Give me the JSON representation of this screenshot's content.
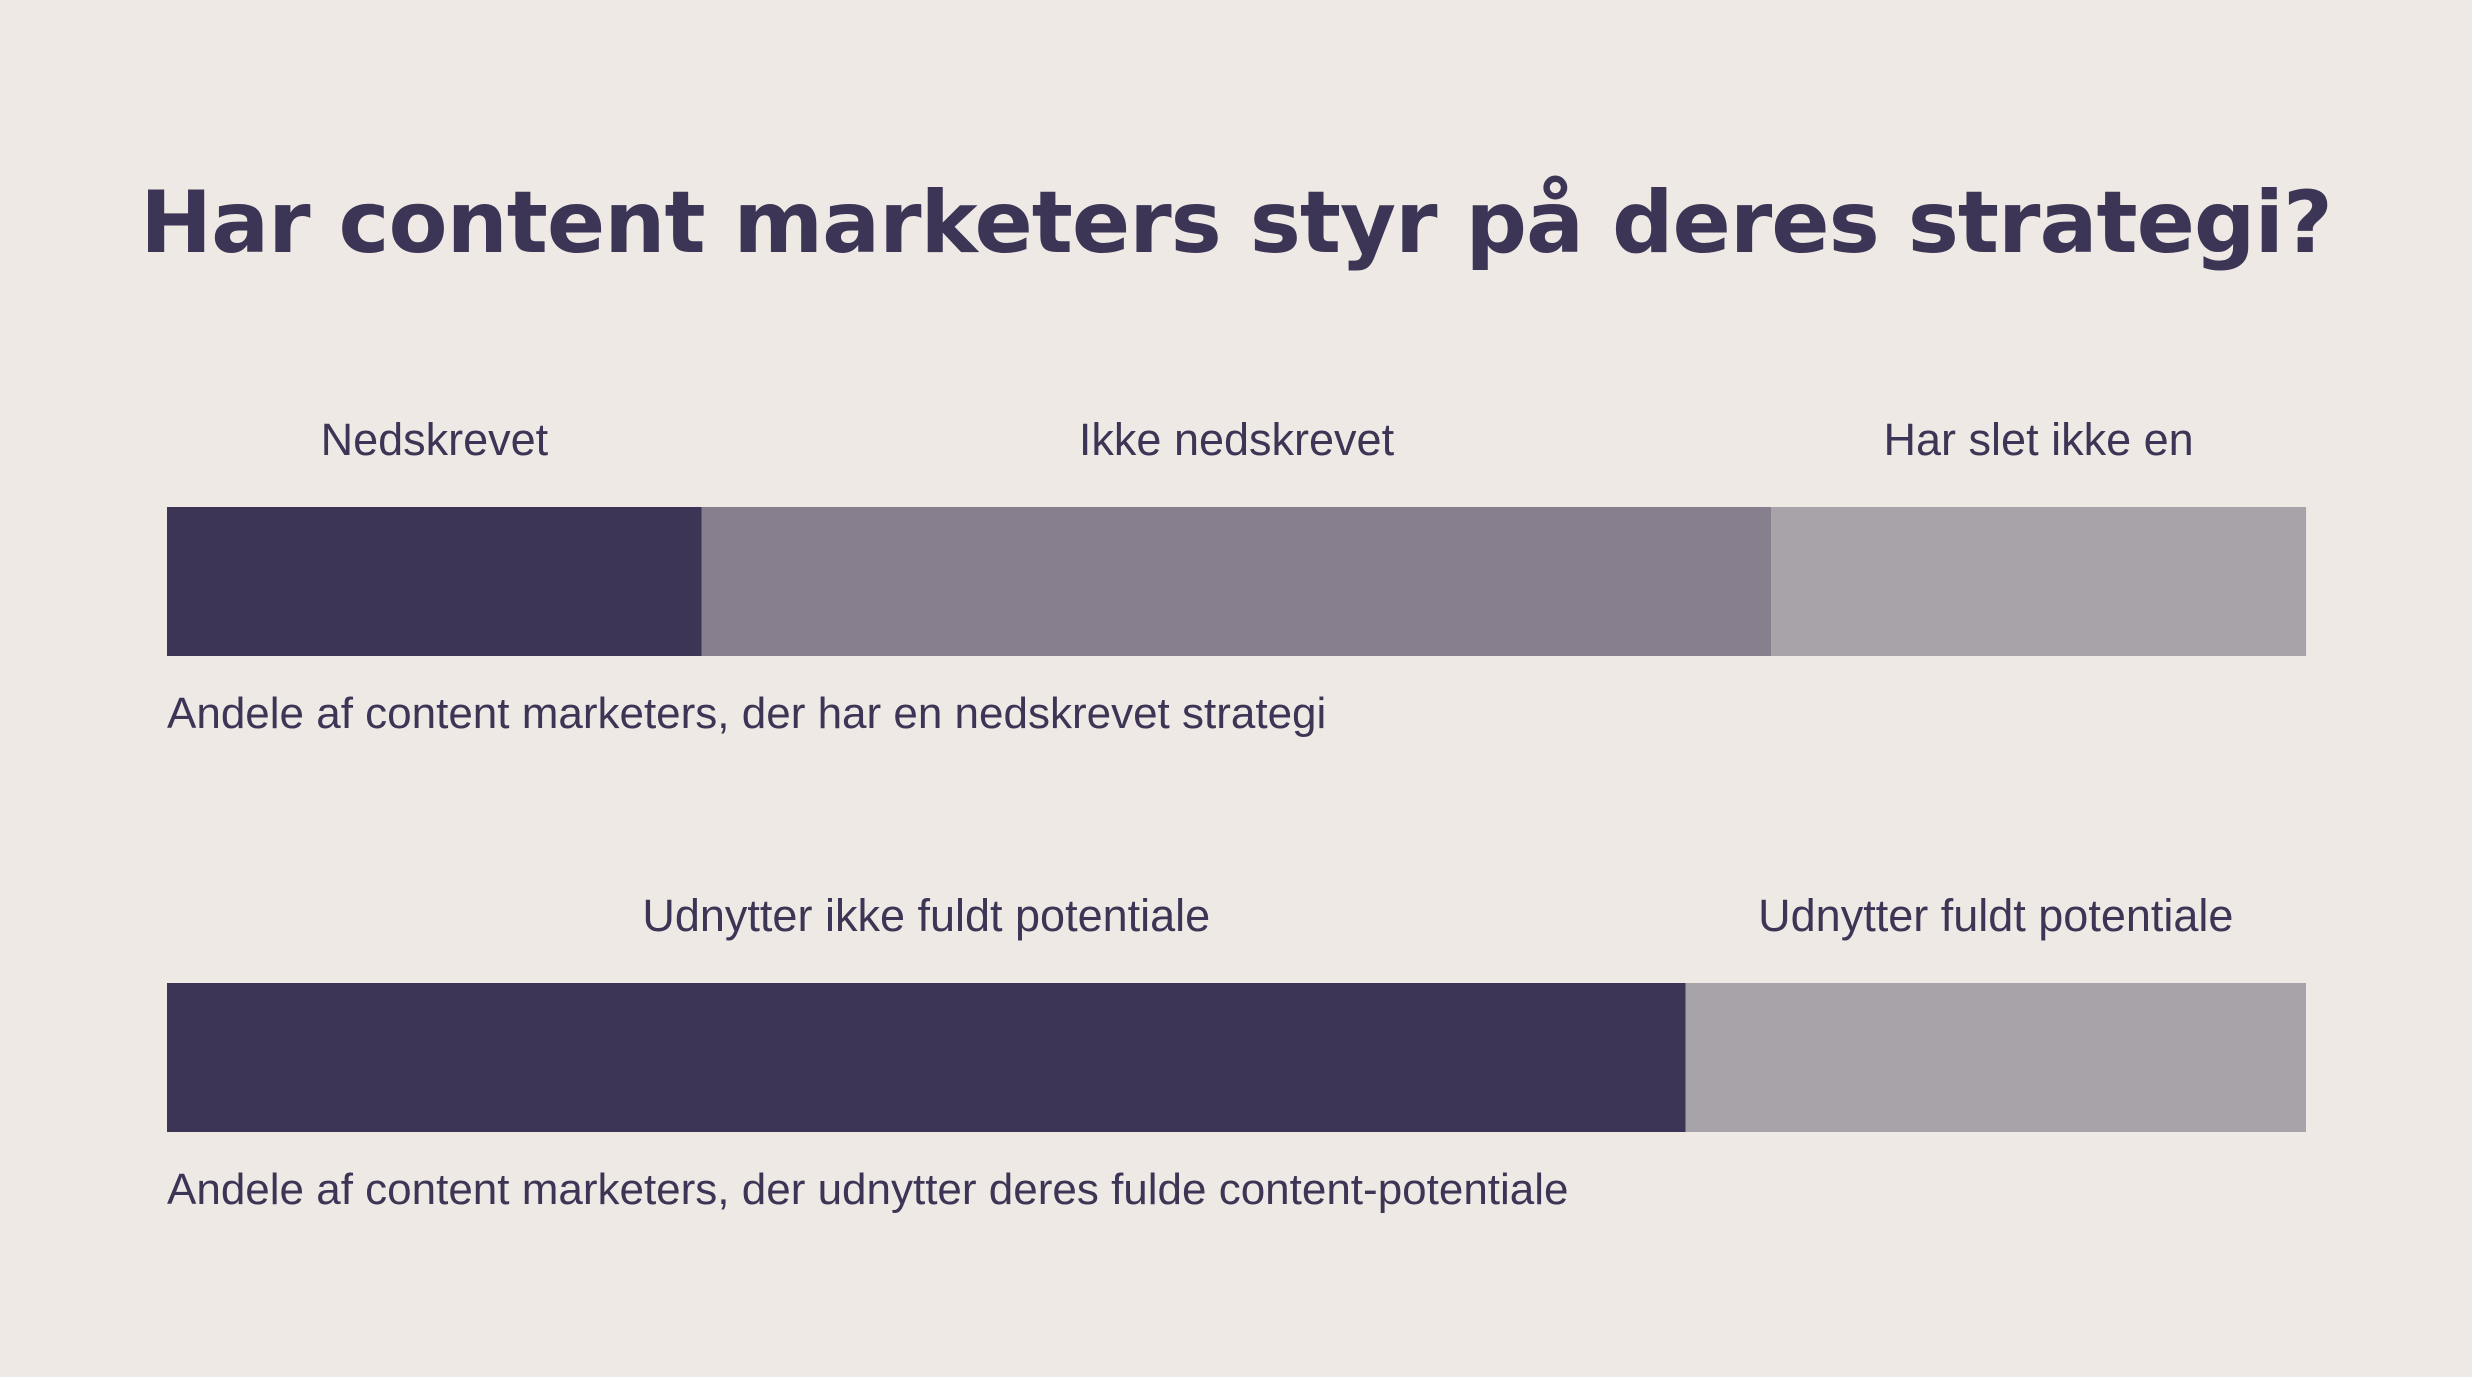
{
  "chart_data": {
    "type": "bar",
    "orientation": "horizontal-stacked",
    "title": "Har content marketers styr på deres strategi?",
    "bars": [
      {
        "caption": "Andele af content marketers, der har en nedskrevet strategi",
        "segments": [
          {
            "name": "Nedskrevet",
            "value": 25,
            "color": "#3d3555"
          },
          {
            "name": "Ikke nedskrevet",
            "value": 50,
            "color": "#877f8e"
          },
          {
            "name": "Har slet ikke en",
            "value": 25,
            "color": "#a8a3a9"
          }
        ]
      },
      {
        "caption": "Andele af content marketers, der udnytter deres fulde content-potentiale",
        "segments": [
          {
            "name": "Udnytter ikke fuldt potentiale",
            "value": 71,
            "color": "#3d3555"
          },
          {
            "name": "Udnytter fuldt potentiale",
            "value": 29,
            "color": "#a8a3a9"
          }
        ]
      }
    ],
    "grid": false,
    "legend": "none"
  }
}
